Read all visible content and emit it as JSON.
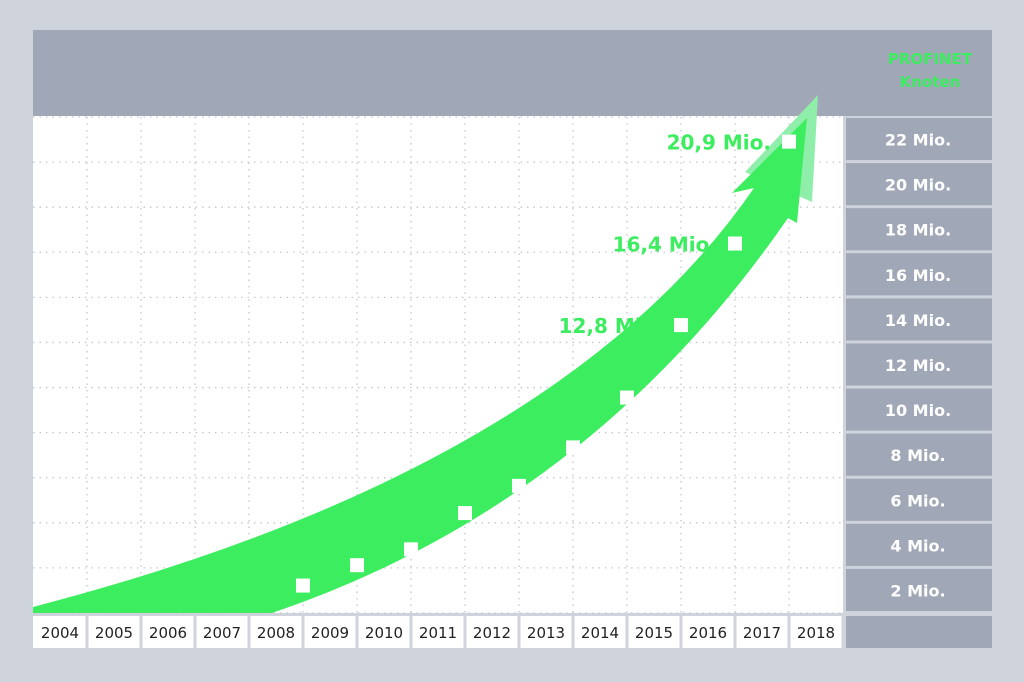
{
  "chart_data": {
    "type": "line",
    "title": "PROFINET Knoten",
    "title_lines": [
      "PROFINET",
      "Knoten"
    ],
    "categories": [
      "2004",
      "2005",
      "2006",
      "2007",
      "2008",
      "2009",
      "2010",
      "2011",
      "2012",
      "2013",
      "2014",
      "2015",
      "2016",
      "2017",
      "2018"
    ],
    "y_tick_labels": [
      "22 Mio.",
      "20 Mio.",
      "18 Mio.",
      "16 Mio.",
      "14 Mio.",
      "12 Mio.",
      "10 Mio.",
      "8 Mio.",
      "6 Mio.",
      "4 Mio.",
      "2 Mio."
    ],
    "y_unit": "Mio.",
    "ylim": [
      0,
      22
    ],
    "series": [
      {
        "name": "PROFINET Knoten",
        "x": [
          "2008",
          "2009",
          "2010",
          "2011",
          "2012",
          "2013",
          "2014",
          "2015",
          "2016",
          "2017"
        ],
        "values": [
          1.3,
          2.2,
          2.9,
          4.5,
          5.7,
          7.4,
          9.6,
          12.8,
          16.4,
          20.9
        ]
      }
    ],
    "data_labels": [
      {
        "year": "2015",
        "value": 12.8,
        "text": "12,8 Mio."
      },
      {
        "year": "2016",
        "value": 16.4,
        "text": "16,4 Mio."
      },
      {
        "year": "2017",
        "value": 20.9,
        "text": "20,9 Mio."
      }
    ],
    "grid": true,
    "colors": {
      "accent": "#3cee5f",
      "accent_light": "#8fefaa",
      "panel": "#a0a7b6",
      "background": "#cfd3dc"
    }
  }
}
